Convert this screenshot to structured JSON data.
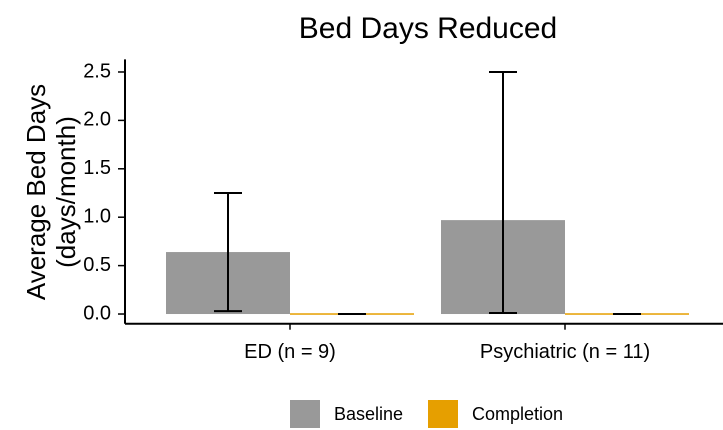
{
  "chart_data": {
    "type": "bar",
    "title": "Bed Days Reduced",
    "ylabel": [
      "Average Bed Days",
      "(days/month)"
    ],
    "categories": [
      "ED (n = 9)",
      "Psychiatric (n = 11)"
    ],
    "series": [
      {
        "name": "Baseline",
        "color": "#999999",
        "values": [
          0.64,
          0.97
        ],
        "low": [
          0.03,
          0.01
        ],
        "high": [
          1.25,
          2.5
        ]
      },
      {
        "name": "Completion",
        "color": "#E69F00",
        "values": [
          0,
          0
        ],
        "low": [
          0,
          0
        ],
        "high": [
          0,
          0
        ]
      }
    ],
    "ylim": [
      -0.1,
      2.63
    ],
    "yticks": [
      {
        "value": 0,
        "label": "0.0"
      },
      0.5,
      {
        "value": 1,
        "label": "1.0"
      },
      1.5,
      {
        "value": 2,
        "label": "2.0"
      },
      2.5
    ],
    "grid": false,
    "legend": "bottom"
  }
}
